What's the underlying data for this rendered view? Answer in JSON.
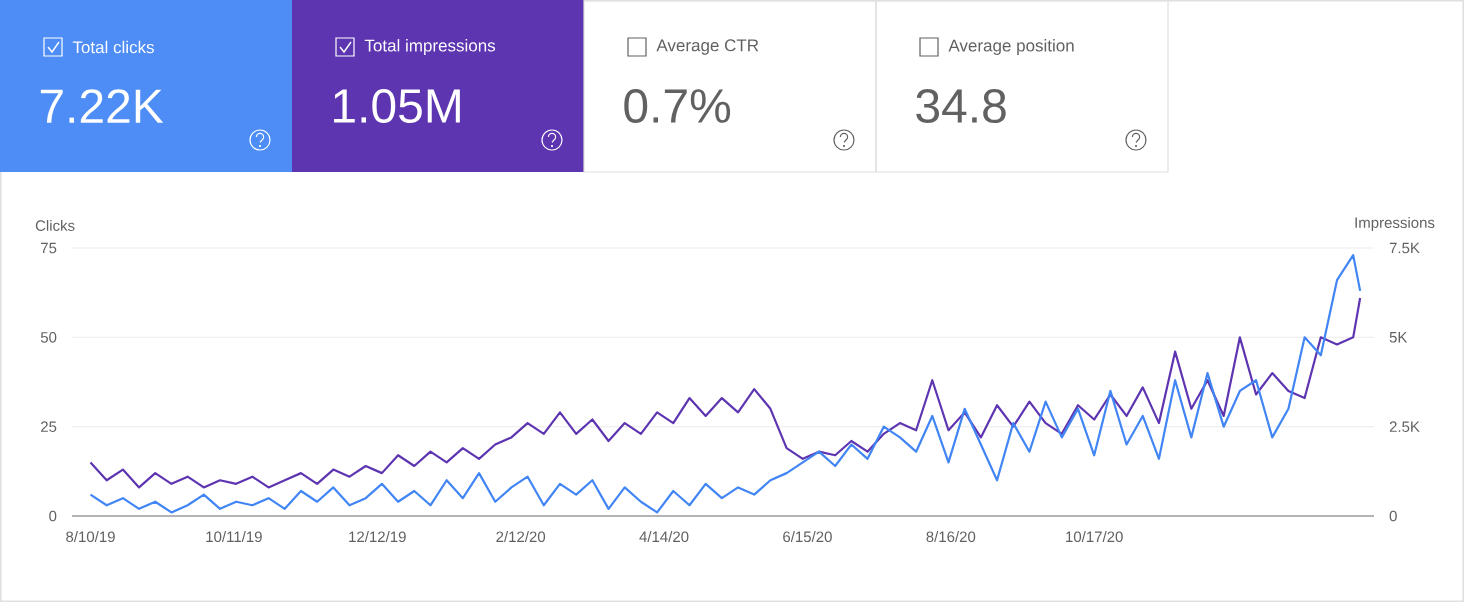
{
  "chart_data": [
    {
      "type": "other",
      "categories": [
        "Total clicks",
        "Total impressions",
        "Average CTR",
        "Average position"
      ],
      "value_labels": [
        "7.22K",
        "1.05M",
        "0.7%",
        "34.8"
      ],
      "colors": [
        "#4e8df5",
        "#5e35b1",
        "#ffffff",
        "#ffffff"
      ]
    },
    {
      "type": "line",
      "ylabel": "Clicks",
      "y2label": "Impressions",
      "x": [
        "2019-08-10",
        "2019-08-17",
        "2019-08-24",
        "2019-08-31",
        "2019-09-07",
        "2019-09-14",
        "2019-09-21",
        "2019-09-28",
        "2019-10-05",
        "2019-10-12",
        "2019-10-19",
        "2019-10-26",
        "2019-11-02",
        "2019-11-09",
        "2019-11-16",
        "2019-11-23",
        "2019-11-30",
        "2019-12-07",
        "2019-12-14",
        "2019-12-21",
        "2019-12-28",
        "2020-01-04",
        "2020-01-11",
        "2020-01-18",
        "2020-01-25",
        "2020-02-01",
        "2020-02-08",
        "2020-02-15",
        "2020-02-22",
        "2020-02-29",
        "2020-03-07",
        "2020-03-14",
        "2020-03-21",
        "2020-03-28",
        "2020-04-04",
        "2020-04-11",
        "2020-04-18",
        "2020-04-25",
        "2020-05-02",
        "2020-05-09",
        "2020-05-16",
        "2020-05-23",
        "2020-05-30",
        "2020-06-06",
        "2020-06-13",
        "2020-06-20",
        "2020-06-27",
        "2020-07-04",
        "2020-07-11",
        "2020-07-18",
        "2020-07-25",
        "2020-08-01",
        "2020-08-08",
        "2020-08-15",
        "2020-08-22",
        "2020-08-29",
        "2020-09-05",
        "2020-09-12",
        "2020-09-19",
        "2020-09-26",
        "2020-10-03",
        "2020-10-10",
        "2020-10-17",
        "2020-10-24",
        "2020-10-31",
        "2020-11-07",
        "2020-11-14",
        "2020-11-21",
        "2020-11-28",
        "2020-12-05",
        "2020-12-12",
        "2020-12-19",
        "2020-12-26",
        "2021-01-02",
        "2021-01-09",
        "2021-01-16",
        "2021-01-23",
        "2021-01-30",
        "2021-02-06",
        "2021-02-09"
      ],
      "series": [
        {
          "axis": "y2",
          "color": "#5e35b1",
          "values": [
            1500,
            1000,
            1300,
            800,
            1200,
            900,
            1100,
            800,
            1000,
            900,
            1100,
            800,
            1000,
            1200,
            900,
            1300,
            1100,
            1400,
            1200,
            1700,
            1400,
            1800,
            1500,
            1900,
            1600,
            2000,
            2200,
            2600,
            2300,
            2900,
            2300,
            2700,
            2100,
            2600,
            2300,
            2900,
            2600,
            3300,
            2800,
            3300,
            2900,
            3550,
            3000,
            1900,
            1600,
            1800,
            1700,
            2100,
            1800,
            2300,
            2600,
            2400,
            3800,
            2400,
            2900,
            2200,
            3100,
            2500,
            3200,
            2600,
            2300,
            3100,
            2700,
            3400,
            2800,
            3600,
            2600,
            4600,
            3000,
            3800,
            2800,
            5000,
            3400,
            4000,
            3500,
            3300,
            5000,
            4800,
            5000,
            6100
          ]
        },
        {
          "color": "#4285f4",
          "values": [
            6,
            3,
            5,
            2,
            4,
            1,
            3,
            6,
            2,
            4,
            3,
            5,
            2,
            7,
            4,
            8,
            3,
            5,
            9,
            4,
            7,
            3,
            10,
            5,
            12,
            4,
            8,
            11,
            3,
            9,
            6,
            10,
            2,
            8,
            4,
            1,
            7,
            3,
            9,
            5,
            8,
            6,
            10,
            12,
            15,
            18,
            14,
            20,
            16,
            25,
            22,
            18,
            28,
            15,
            30,
            20,
            10,
            26,
            18,
            32,
            22,
            30,
            17,
            35,
            20,
            28,
            16,
            38,
            22,
            40,
            25,
            35,
            38,
            22,
            30,
            50,
            45,
            66,
            73,
            63
          ]
        }
      ],
      "xlim": [
        "2019-08-02",
        "2021-02-15"
      ],
      "xticks": [
        {
          "value": "2019-08-10",
          "label": "8/10/19"
        },
        {
          "value": "2019-10-11",
          "label": "10/11/19"
        },
        {
          "value": "2019-12-12",
          "label": "12/12/19"
        },
        {
          "value": "2020-02-12",
          "label": "2/12/20"
        },
        {
          "value": "2020-04-14",
          "label": "4/14/20"
        },
        {
          "value": "2020-06-15",
          "label": "6/15/20"
        },
        {
          "value": "2020-08-16",
          "label": "8/16/20"
        },
        {
          "value": "2020-10-17",
          "label": "10/17/20"
        }
      ],
      "ylim": [
        0,
        75
      ],
      "yticks": [
        0,
        25,
        50,
        75
      ],
      "y2lim": [
        0,
        7500
      ],
      "y2ticks": [
        0,
        {
          "value": 2500,
          "label": "2.5K"
        },
        {
          "value": 5000,
          "label": "5K"
        },
        {
          "value": 7500,
          "label": "7.5K"
        }
      ],
      "grid": "y"
    }
  ]
}
